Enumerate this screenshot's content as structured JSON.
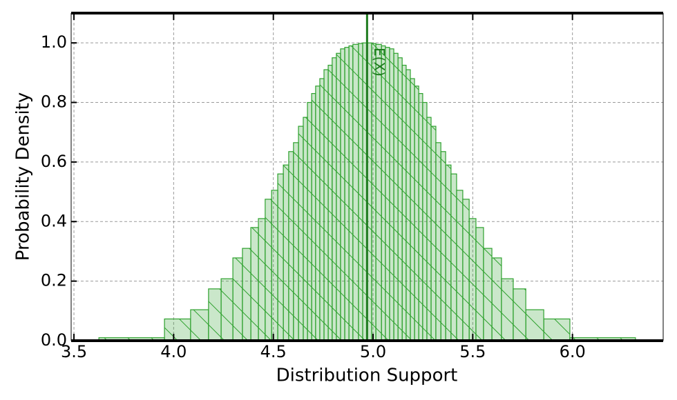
{
  "chart_data": {
    "type": "histogram",
    "xlabel": "Distribution Support",
    "ylabel": "Probability Density",
    "bins": [
      3.625,
      3.954,
      4.085,
      4.175,
      4.238,
      4.297,
      4.345,
      4.387,
      4.425,
      4.459,
      4.491,
      4.522,
      4.55,
      4.577,
      4.601,
      4.626,
      4.65,
      4.671,
      4.692,
      4.712,
      4.733,
      4.754,
      4.775,
      4.795,
      4.816,
      4.837,
      4.858,
      4.879,
      4.899,
      4.927,
      4.948,
      4.993,
      5.014,
      5.042,
      5.062,
      5.083,
      5.104,
      5.125,
      5.146,
      5.166,
      5.187,
      5.208,
      5.229,
      5.249,
      5.27,
      5.291,
      5.315,
      5.34,
      5.364,
      5.391,
      5.419,
      5.45,
      5.482,
      5.516,
      5.554,
      5.596,
      5.644,
      5.703,
      5.766,
      5.856,
      5.987,
      6.316
    ],
    "values": [
      0.01,
      0.073,
      0.104,
      0.174,
      0.208,
      0.278,
      0.31,
      0.38,
      0.41,
      0.475,
      0.505,
      0.56,
      0.59,
      0.635,
      0.665,
      0.72,
      0.75,
      0.8,
      0.83,
      0.855,
      0.88,
      0.91,
      0.925,
      0.95,
      0.965,
      0.98,
      0.985,
      0.99,
      0.995,
      0.998,
      1.0,
      0.998,
      0.995,
      0.99,
      0.985,
      0.98,
      0.965,
      0.95,
      0.925,
      0.91,
      0.88,
      0.855,
      0.83,
      0.8,
      0.75,
      0.72,
      0.665,
      0.635,
      0.59,
      0.56,
      0.505,
      0.475,
      0.41,
      0.38,
      0.31,
      0.278,
      0.208,
      0.174,
      0.104,
      0.073,
      0.01
    ],
    "color": "#2ca02c",
    "vline": {
      "x": 4.97,
      "label": "E(X)",
      "color": "#1e7b1e"
    },
    "xlim": [
      3.486,
      6.455
    ],
    "ylim": [
      0,
      1.1
    ],
    "xticks": [
      {
        "value": 3.5,
        "label": "3.5"
      },
      {
        "value": 4,
        "label": "4.0"
      },
      {
        "value": 4.5,
        "label": "4.5"
      },
      {
        "value": 5,
        "label": "5.0"
      },
      {
        "value": 5.5,
        "label": "5.5"
      },
      {
        "value": 6,
        "label": "6.0"
      }
    ],
    "yticks": [
      {
        "value": 0,
        "label": "0.0"
      },
      {
        "value": 0.2,
        "label": "0.2"
      },
      {
        "value": 0.4,
        "label": "0.4"
      },
      {
        "value": 0.6,
        "label": "0.6"
      },
      {
        "value": 0.8,
        "label": "0.8"
      },
      {
        "value": 1,
        "label": "1.0"
      }
    ],
    "grid": true
  }
}
